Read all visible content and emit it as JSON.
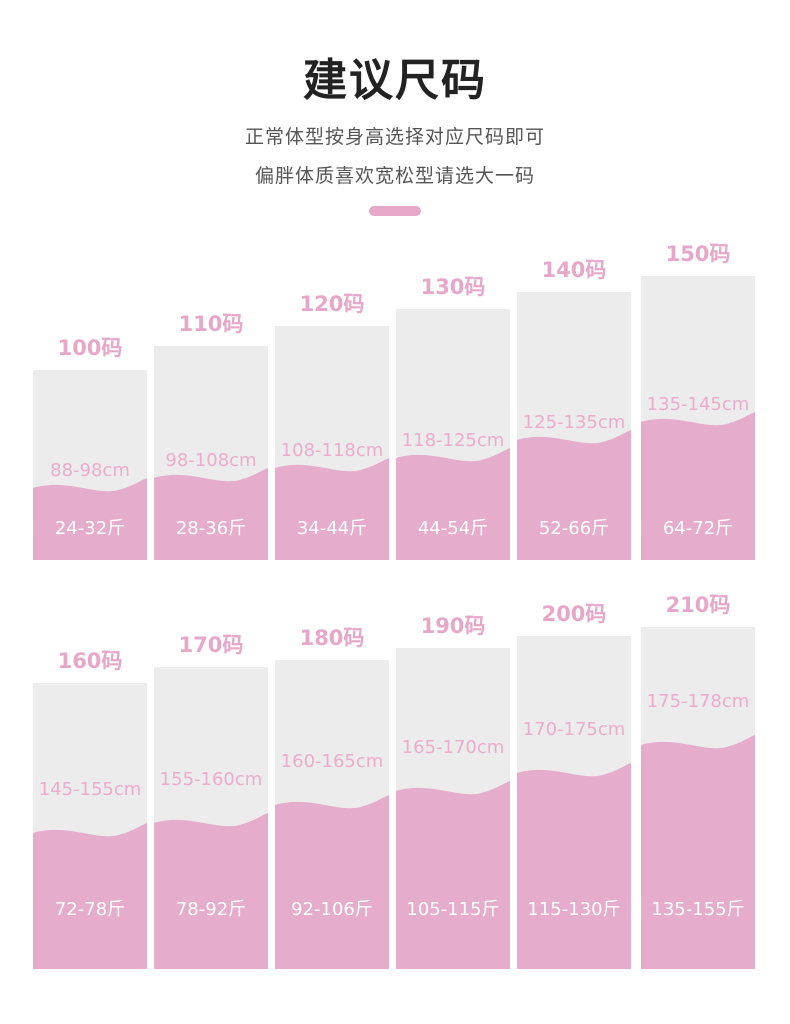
{
  "header": {
    "title": "建议尺码",
    "subtitle_line1": "正常体型按身高选择对应尺码即可",
    "subtitle_line2": "偏胖体质喜欢宽松型请选大一码"
  },
  "colors": {
    "accent_pink": "#e6a7c8",
    "card_gray": "#ececec",
    "wave_pink": "#e6accb"
  },
  "rows": [
    {
      "sizes": [
        {
          "size": "100码",
          "height": "88-98cm",
          "weight": "24-32斤"
        },
        {
          "size": "110码",
          "height": "98-108cm",
          "weight": "28-36斤"
        },
        {
          "size": "120码",
          "height": "108-118cm",
          "weight": "34-44斤"
        },
        {
          "size": "130码",
          "height": "118-125cm",
          "weight": "44-54斤"
        },
        {
          "size": "140码",
          "height": "125-135cm",
          "weight": "52-66斤"
        },
        {
          "size": "150码",
          "height": "135-145cm",
          "weight": "64-72斤"
        }
      ]
    },
    {
      "sizes": [
        {
          "size": "160码",
          "height": "145-155cm",
          "weight": "72-78斤"
        },
        {
          "size": "170码",
          "height": "155-160cm",
          "weight": "78-92斤"
        },
        {
          "size": "180码",
          "height": "160-165cm",
          "weight": "92-106斤"
        },
        {
          "size": "190码",
          "height": "165-170cm",
          "weight": "105-115斤"
        },
        {
          "size": "200码",
          "height": "170-175cm",
          "weight": "115-130斤"
        },
        {
          "size": "210码",
          "height": "175-178cm",
          "weight": "135-155斤"
        }
      ]
    }
  ]
}
